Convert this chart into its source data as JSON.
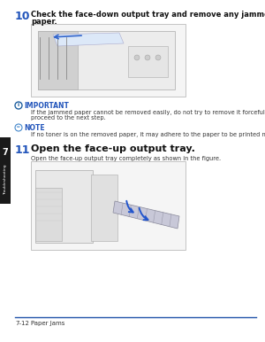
{
  "page_bg": "#ffffff",
  "sidebar_color": "#1a1a1a",
  "sidebar_text": "Troubleshooting",
  "sidebar_chapter": "7",
  "step10_num": "10",
  "step10_line1": "Check the face-down output tray and remove any jammed",
  "step10_line2": "paper.",
  "important_label": "IMPORTANT",
  "important_icon_color": "#2060a0",
  "important_line1": "If the jammed paper cannot be removed easily, do not try to remove it forcefully but",
  "important_line2": "proceed to the next step.",
  "note_label": "NOTE",
  "note_icon_color": "#4488cc",
  "note_text": "If no toner is on the removed paper, it may adhere to the paper to be printed next.",
  "step11_num": "11",
  "step11_text": "Open the face-up output tray.",
  "step11_sub": "Open the face-up output tray completely as shown in the figure.",
  "footer_line_color": "#2255aa",
  "footer_text": "7-12",
  "footer_label": "Paper Jams",
  "title_color": "#111111",
  "step_num_color": "#2255bb",
  "label_color": "#2255bb",
  "body_text_color": "#333333",
  "img_border_color": "#bbbbbb",
  "img_bg": "#f5f5f5"
}
